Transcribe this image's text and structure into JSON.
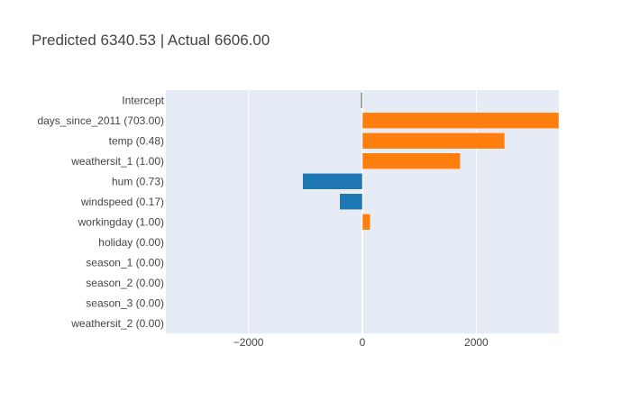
{
  "title": "Predicted 6340.53 | Actual 6606.00",
  "colors": {
    "positive": "#ff7f0e",
    "negative": "#1f77b4",
    "intercept": "#7f7f7f",
    "plot_bg": "#e5ecf6",
    "grid": "#ffffff",
    "text": "#444444",
    "title": "#444444"
  },
  "chart_data": {
    "type": "bar",
    "orientation": "horizontal",
    "categories": [
      "Intercept",
      "days_since_2011 (703.00)",
      "temp (0.48)",
      "weathersit_1 (1.00)",
      "hum (0.73)",
      "windspeed (0.17)",
      "workingday (1.00)",
      "holiday (0.00)",
      "season_1 (0.00)",
      "season_2 (0.00)",
      "season_3 (0.00)",
      "weathersit_2 (0.00)"
    ],
    "values": [
      -30,
      3500,
      2500,
      1720,
      -1050,
      -400,
      140,
      0,
      0,
      0,
      0,
      0
    ],
    "xlim": [
      -3450,
      3450
    ],
    "xticks": [
      -2000,
      0,
      2000
    ],
    "xtick_labels": [
      "−2000",
      "0",
      "2000"
    ],
    "grid": true,
    "legend": "none"
  }
}
